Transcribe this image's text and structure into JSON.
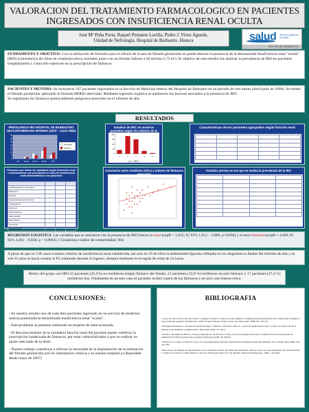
{
  "header": {
    "title": "VALORACION DEL TRATAMIENTO FARMACOLOGICO EN PACIENTES INGRESADOS CON INSUFICIENCIA RENAL OCULTA",
    "authors": "José Mª Peña Porta, Raquel Pernaute Lavilla, Pedro J. Vives Agueda.",
    "affiliation": "Unidad de Nefrología. Hospital de Barbastro. Huesca"
  },
  "logo": {
    "word": "salud",
    "tagline": "Servicio Aragonés de Salud",
    "band": "SECTOR DE BARBASTRO"
  },
  "objective": {
    "label": "FUNDAMENTO Y OBJETIVO:",
    "text": " Con la utilización de fórmulas para el cálculo de la tasa de filtrado glomerular se puede detectar la presencia de la denominada Insuficiencia renal \"oculta\" (IRO) (coexistencia de cifras de creatinina sérica normales junto con un filtrado inferior a 60 ml/min/1,73 m²). El objetivo de este estudio fue analizar la prevalencia de IRO en pacientes hospitalizados y como ello repercute en la prescripción de fármacos."
  },
  "methods": {
    "label": "PACIENTES Y METODO:",
    "text": " Se incluyeron 567 pacientes ingresados en la Sección de Medicina Interna del Hospital de Barbastro en un periodo de tres meses (abril-junio de 2006). Se estimó el filtrado glomerular aplicando la fórmula MDRD abreviada. Mediante regresión logística se analizaron los factores asociados a la presencia de IRO.",
    "text2": "Se registraron los fármacos potencialmente peligrosos prescritos en el informe de alta."
  },
  "results": {
    "heading": "RESULTADOS"
  },
  "figures": {
    "prevalence_title": "PREVALENCIA IRO HOSPITAL DE BARBASTRO SECCIÓN MEDICINA INTERNA (Abril – Junio 2006)",
    "erc_title": "Estadios de ERC en nuestros pacientes según los criterios de la NKF",
    "erc_caption": "( n = 567 )",
    "characteristics_title": "Características de los pacientes agrupados según función renal",
    "drugs_title": "Fármacos que deben ser ajustados según la función renal o administrados con precaución en caso de insuficiencia renal administrados a los pacientes",
    "scatter_title": "Asociación entre creatinina sérica y número de fármacos prescritos",
    "ageing_title": "Estudios previos en los que se evalúa la prevalencia de la IRO",
    "drug_rows": [
      "Antiinflamatorios no esteroideos",
      "Metformina",
      "Digoxina",
      "Heparinas bajo peso molecular",
      "Antiagregantes",
      "Alopurinol",
      "Espironolactona",
      "Glibenclamida",
      "IECA / ARA II",
      "Quinolonas",
      "Anticoagulantes",
      "Tramadol",
      "Ranitidina",
      "Otros"
    ]
  },
  "regression": {
    "label": "REGRESION LOGISTICA",
    "text": ": Las variables que se asociaron con la presencia de IRO fueron la ",
    "var1": "edad",
    "text2": " (expB = 1,035; IC 95% 1,012 – 1,060; p=0,004) y el sexo ",
    "var2": "femenino",
    "text3": "(expB = 4,669; IC 95% 2,461 – 8,856; p < 0,0001). ( Creatinina  e indice de comorbilidad, NS)"
  },
  "age_note": "A pesar de que en 138 casos existían criterios de insuficiencia renal establecida, tan solo en 59 de ellos la enfermedad figuraba reflejada en los diagnósticos finales del informe de alta y en solo 8 casos se hacía constar el FG estimado durante el ingreso, siempre mediante la recogida de orina de 24 horas.",
  "iro_note": "Dentro del grupo con IRO 22 pacientes (35,5%) no recibieron ningún fármaco del listado, 21 pacientes (33,8 %) recibieron un solo fármaco y 17 pacientes (27,4 %) recibieron dos. Finalmente en un solo caso el paciente recibió cuatro de los fármacos y en otro caso fueron cinco.",
  "conclusions": {
    "title": "CONCLUSIONES:",
    "items": [
      "- En nuestro estudio uno de cada diez pacientes ingresado en un servicio de medicina interna presentaba la denominada insuficiencia renal \"oculta\".",
      "- Este problema se presenta sobretodo en mujeres de edad avanzada.",
      "- El desconocimiento de la verdadera función renal del paciente puede conllevar la prescripción inadecuada de fármacos, por estar contraindicados o por no realizar un ajuste adecuado de la dosis.",
      "- Nuestro trabajo contribuye a reforzar la necesidad de la implantación de la estimación del filtrado glomerular por los laboratorios clínicos ( en nuestro hospital ya disponible desde mayo de 2007)"
    ]
  },
  "bibliography": {
    "title": "BIBLIOGRAFIA",
    "refs": [
      "-Levey AS, Bosch JP, Lewis JB, Greene T, Rogers N, Roth D. A more accurate method to estimate glomerular filtration rate from serum creatinine: a new prediction equation. Modification of Diet in Renal Disease Study Group. Ann Intern Med. 1999;130 : 461-70.",
      "-Fernández-Fresnedo G, de Francisco ALM, Rodrigo E, Piñera C, Herráez I, Ruiz JC y Arias M. Insuficiencia renal \"oculta\" por valoración de la función renal mediante creatinina sérica. Nefrología 2002; 22:144-51",
      "-García F, Montañés R, Bover J, Cases A, Deulofeu R, De Francisco ALM, et al. Recomendaciones sobre la utilización de ecuaciones para la estimación del filtrado glomerular en adultos Nefrología 2006; 26: 658-65.",
      "-Stevens LA, Coresh J, Greene T, Levey AS. Assessing kidney function: measured and estimated glomerular filtration rate. N Engl J Med 2006; 354: 2473-83.",
      "-Pérez-García R. Manejo de medicamentos en los enfermos renales. En: Hernando Avendaño. Alfonso García R, Arias-Rodríguez M, Caramelo Díaz C, Egido de los Ríos J, Lamas Peláez S, editores. Nefrología Clínica (2ª ed). Madrid. Editorial Panamericana, 1998. p. 951-962."
    ]
  },
  "chart_data": [
    {
      "type": "bar",
      "title": "PREVALENCIA IRO HOSPITAL DE BARBASTRO SECCIÓN MEDICINA INTERNA (Abril – Junio 2006)",
      "categories": [
        "< 45",
        "45-64",
        "65-74",
        "75-84",
        "> 85"
      ],
      "series": [
        {
          "name": "Hombres",
          "values": [
            0,
            3,
            8,
            12,
            6
          ],
          "color": "#f3f3ff"
        },
        {
          "name": "Mujeres",
          "values": [
            0,
            2,
            5,
            17,
            9
          ],
          "color": "#c8161d"
        }
      ],
      "ylim": [
        0,
        35
      ],
      "legend": "top-right"
    },
    {
      "type": "bar",
      "title": "Estadios de ERC en nuestros pacientes según los criterios de la NKF",
      "categories": [
        "1",
        "2",
        "3",
        "4",
        "5"
      ],
      "values": [
        40,
        185,
        150,
        30,
        8
      ],
      "bar_color": "#c8161d",
      "ylim": [
        0,
        200
      ]
    },
    {
      "type": "scatter",
      "title": "Asociación entre creatinina sérica y número de fármacos prescritos",
      "x": [
        0.7,
        0.8,
        0.8,
        0.9,
        0.9,
        1.0,
        1.0,
        1.0,
        1.1,
        1.1,
        1.2,
        1.2,
        1.3,
        1.3,
        1.4,
        1.5,
        1.6,
        1.8,
        2.0,
        2.2,
        2.5,
        0.9,
        1.0,
        1.1,
        1.2,
        0.8,
        1.4,
        1.7,
        1.0,
        1.3
      ],
      "y": [
        3,
        5,
        7,
        4,
        8,
        6,
        9,
        2,
        7,
        5,
        8,
        10,
        6,
        9,
        7,
        8,
        11,
        9,
        10,
        12,
        11,
        6,
        4,
        8,
        5,
        9,
        10,
        8,
        11,
        7
      ],
      "marker_color": "#d96a5b"
    }
  ]
}
